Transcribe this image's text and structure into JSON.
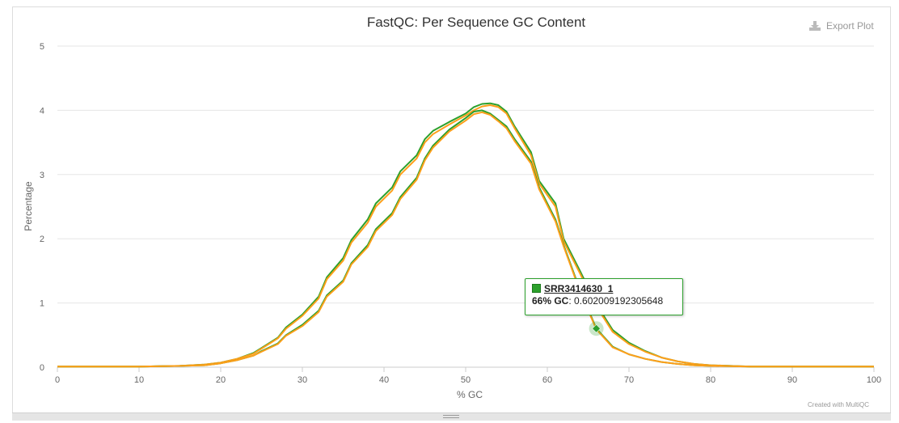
{
  "export": {
    "label": "Export Plot"
  },
  "credit": "Created with MultiQC",
  "tooltip": {
    "sample": "SRR3414630_1",
    "key": "66% GC",
    "value": "0.602009192305648"
  },
  "colors": {
    "series_a": "#2ca02c",
    "series_b": "#ff9f1a",
    "grid": "#e6e6e6",
    "axis": "#cccccc",
    "hover_marker": "#2ca02c"
  },
  "chart_data": {
    "type": "line",
    "title": "FastQC: Per Sequence GC Content",
    "xlabel": "% GC",
    "ylabel": "Percentage",
    "xlim": [
      0,
      100
    ],
    "ylim": [
      0,
      5
    ],
    "x_ticks": [
      "0",
      "10",
      "20",
      "30",
      "40",
      "50",
      "60",
      "70",
      "80",
      "90",
      "100"
    ],
    "y_ticks": [
      "0",
      "1",
      "2",
      "3",
      "4",
      "5"
    ],
    "grid": "horizontal",
    "legend": "none",
    "hover_point": {
      "x": 66,
      "y": 0.602
    },
    "series": [
      {
        "color": "#2ca02c",
        "points": [
          [
            0,
            0.01
          ],
          [
            5,
            0.01
          ],
          [
            10,
            0.01
          ],
          [
            15,
            0.02
          ],
          [
            18,
            0.04
          ],
          [
            20,
            0.07
          ],
          [
            22,
            0.13
          ],
          [
            24,
            0.22
          ],
          [
            25,
            0.3
          ],
          [
            27,
            0.46
          ],
          [
            28,
            0.62
          ],
          [
            30,
            0.82
          ],
          [
            32,
            1.1
          ],
          [
            33,
            1.4
          ],
          [
            35,
            1.7
          ],
          [
            36,
            1.98
          ],
          [
            38,
            2.3
          ],
          [
            39,
            2.55
          ],
          [
            41,
            2.8
          ],
          [
            42,
            3.05
          ],
          [
            44,
            3.3
          ],
          [
            45,
            3.55
          ],
          [
            46,
            3.68
          ],
          [
            48,
            3.82
          ],
          [
            50,
            3.95
          ],
          [
            51,
            4.05
          ],
          [
            52,
            4.1
          ],
          [
            53,
            4.11
          ],
          [
            54,
            4.08
          ],
          [
            55,
            3.98
          ],
          [
            56,
            3.75
          ],
          [
            58,
            3.35
          ],
          [
            59,
            2.9
          ],
          [
            61,
            2.55
          ],
          [
            62,
            2.0
          ],
          [
            64,
            1.5
          ],
          [
            66,
            0.98
          ],
          [
            68,
            0.58
          ],
          [
            70,
            0.38
          ],
          [
            72,
            0.25
          ],
          [
            74,
            0.15
          ],
          [
            76,
            0.09
          ],
          [
            78,
            0.05
          ],
          [
            80,
            0.03
          ],
          [
            85,
            0.01
          ],
          [
            90,
            0.01
          ],
          [
            100,
            0.01
          ]
        ]
      },
      {
        "color": "#ff9f1a",
        "points": [
          [
            0,
            0.01
          ],
          [
            5,
            0.01
          ],
          [
            10,
            0.01
          ],
          [
            15,
            0.02
          ],
          [
            18,
            0.04
          ],
          [
            20,
            0.07
          ],
          [
            22,
            0.13
          ],
          [
            24,
            0.21
          ],
          [
            25,
            0.29
          ],
          [
            27,
            0.45
          ],
          [
            28,
            0.6
          ],
          [
            30,
            0.8
          ],
          [
            32,
            1.07
          ],
          [
            33,
            1.37
          ],
          [
            35,
            1.66
          ],
          [
            36,
            1.94
          ],
          [
            38,
            2.25
          ],
          [
            39,
            2.5
          ],
          [
            41,
            2.75
          ],
          [
            42,
            3.0
          ],
          [
            44,
            3.25
          ],
          [
            45,
            3.5
          ],
          [
            46,
            3.63
          ],
          [
            48,
            3.78
          ],
          [
            50,
            3.92
          ],
          [
            51,
            4.0
          ],
          [
            52,
            4.06
          ],
          [
            53,
            4.08
          ],
          [
            54,
            4.05
          ],
          [
            55,
            3.95
          ],
          [
            56,
            3.72
          ],
          [
            58,
            3.3
          ],
          [
            59,
            2.86
          ],
          [
            61,
            2.5
          ],
          [
            62,
            1.96
          ],
          [
            64,
            1.46
          ],
          [
            66,
            0.95
          ],
          [
            68,
            0.55
          ],
          [
            70,
            0.36
          ],
          [
            72,
            0.24
          ],
          [
            74,
            0.15
          ],
          [
            76,
            0.09
          ],
          [
            78,
            0.05
          ],
          [
            80,
            0.03
          ],
          [
            85,
            0.01
          ],
          [
            90,
            0.01
          ],
          [
            100,
            0.01
          ]
        ]
      },
      {
        "color": "#2ca02c",
        "points": [
          [
            0,
            0.01
          ],
          [
            5,
            0.01
          ],
          [
            10,
            0.01
          ],
          [
            15,
            0.02
          ],
          [
            18,
            0.03
          ],
          [
            20,
            0.06
          ],
          [
            22,
            0.11
          ],
          [
            24,
            0.18
          ],
          [
            25,
            0.25
          ],
          [
            27,
            0.37
          ],
          [
            28,
            0.5
          ],
          [
            30,
            0.66
          ],
          [
            32,
            0.88
          ],
          [
            33,
            1.12
          ],
          [
            35,
            1.35
          ],
          [
            36,
            1.62
          ],
          [
            38,
            1.9
          ],
          [
            39,
            2.15
          ],
          [
            41,
            2.4
          ],
          [
            42,
            2.65
          ],
          [
            44,
            2.95
          ],
          [
            45,
            3.25
          ],
          [
            46,
            3.45
          ],
          [
            48,
            3.7
          ],
          [
            50,
            3.88
          ],
          [
            51,
            3.98
          ],
          [
            52,
            4.0
          ],
          [
            53,
            3.95
          ],
          [
            54,
            3.85
          ],
          [
            55,
            3.75
          ],
          [
            56,
            3.55
          ],
          [
            58,
            3.2
          ],
          [
            59,
            2.8
          ],
          [
            61,
            2.3
          ],
          [
            62,
            1.9
          ],
          [
            64,
            1.2
          ],
          [
            66,
            0.602
          ],
          [
            68,
            0.32
          ],
          [
            70,
            0.2
          ],
          [
            72,
            0.13
          ],
          [
            74,
            0.08
          ],
          [
            76,
            0.05
          ],
          [
            78,
            0.03
          ],
          [
            80,
            0.02
          ],
          [
            85,
            0.01
          ],
          [
            90,
            0.01
          ],
          [
            100,
            0.01
          ]
        ]
      },
      {
        "color": "#ff9f1a",
        "points": [
          [
            0,
            0.01
          ],
          [
            5,
            0.01
          ],
          [
            10,
            0.01
          ],
          [
            15,
            0.02
          ],
          [
            18,
            0.03
          ],
          [
            20,
            0.06
          ],
          [
            22,
            0.11
          ],
          [
            24,
            0.18
          ],
          [
            25,
            0.24
          ],
          [
            27,
            0.36
          ],
          [
            28,
            0.49
          ],
          [
            30,
            0.64
          ],
          [
            32,
            0.86
          ],
          [
            33,
            1.1
          ],
          [
            35,
            1.33
          ],
          [
            36,
            1.6
          ],
          [
            38,
            1.87
          ],
          [
            39,
            2.12
          ],
          [
            41,
            2.37
          ],
          [
            42,
            2.62
          ],
          [
            44,
            2.92
          ],
          [
            45,
            3.22
          ],
          [
            46,
            3.42
          ],
          [
            48,
            3.67
          ],
          [
            50,
            3.84
          ],
          [
            51,
            3.94
          ],
          [
            52,
            3.97
          ],
          [
            53,
            3.93
          ],
          [
            54,
            3.83
          ],
          [
            55,
            3.72
          ],
          [
            56,
            3.52
          ],
          [
            58,
            3.17
          ],
          [
            59,
            2.77
          ],
          [
            61,
            2.27
          ],
          [
            62,
            1.88
          ],
          [
            64,
            1.18
          ],
          [
            66,
            0.59
          ],
          [
            68,
            0.31
          ],
          [
            70,
            0.2
          ],
          [
            72,
            0.13
          ],
          [
            74,
            0.08
          ],
          [
            76,
            0.05
          ],
          [
            78,
            0.03
          ],
          [
            80,
            0.02
          ],
          [
            85,
            0.01
          ],
          [
            90,
            0.01
          ],
          [
            100,
            0.01
          ]
        ]
      }
    ]
  }
}
